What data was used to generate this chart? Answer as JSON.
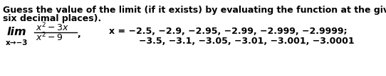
{
  "bg_color": "#ffffff",
  "text_line1": "Guess the value of the limit (if it exists) by evaluating the function at the given numbers (correct to",
  "text_line2": "six decimal places).",
  "x_values_line": "x = −2.5, −2.9, −2.95, −2.99, −2.999, −2.9999;",
  "y_values_line": "−3.5, −3.1, −3.05, −3.01, −3.001, −3.0001",
  "font_size_body": 9.0,
  "font_size_small": 7.5,
  "font_size_lim": 11.5
}
